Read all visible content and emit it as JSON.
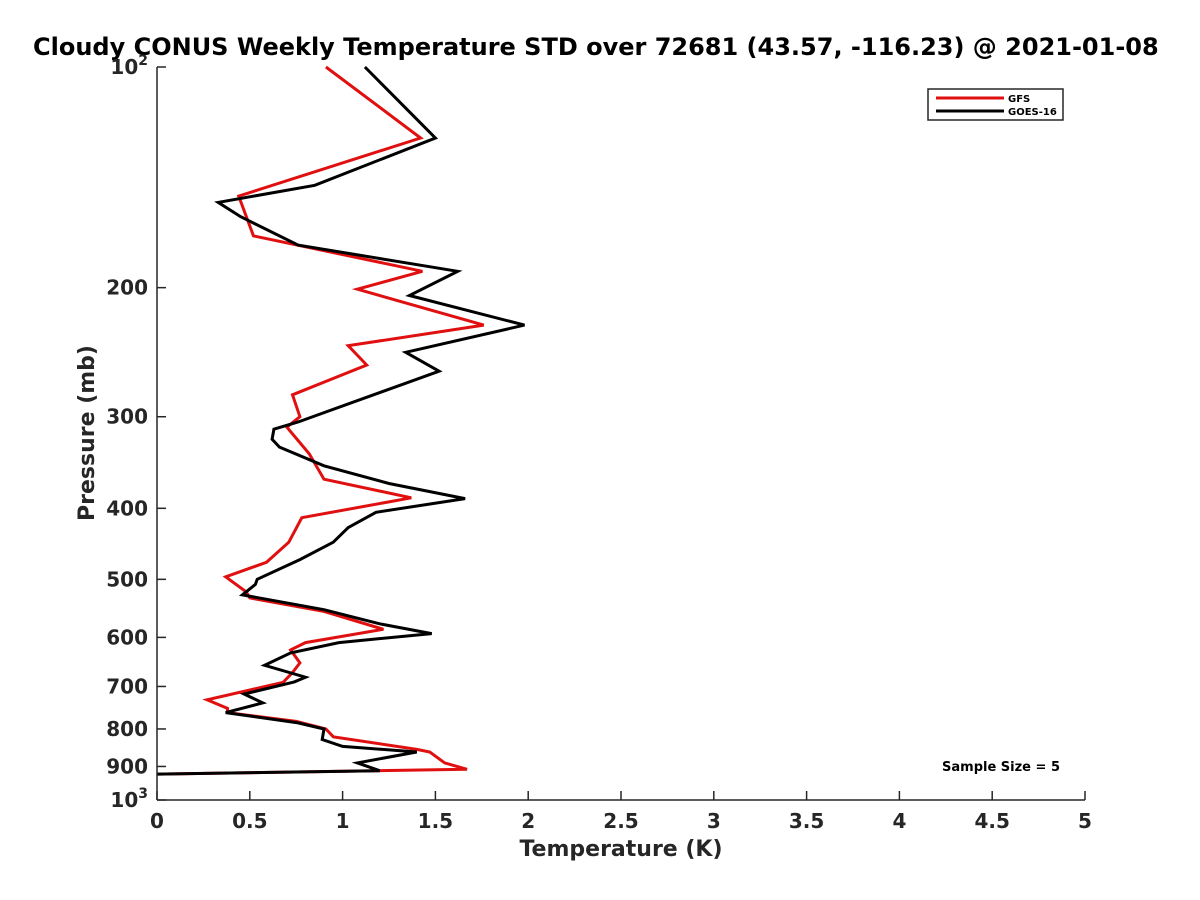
{
  "chart_data": {
    "type": "line",
    "title": "Cloudy CONUS Weekly Temperature STD over 72681 (43.57, -116.23) @ 2021-01-08",
    "xlabel": "Temperature (K)",
    "ylabel": "Pressure (mb)",
    "xlim": [
      0,
      5
    ],
    "ylim": [
      100,
      1000
    ],
    "y_scale": "log",
    "y_reversed": true,
    "x_ticks": [
      0,
      0.5,
      1,
      1.5,
      2,
      2.5,
      3,
      3.5,
      4,
      4.5,
      5
    ],
    "x_tick_labels": [
      "0",
      "0.5",
      "1",
      "1.5",
      "2",
      "2.5",
      "3",
      "3.5",
      "4",
      "4.5",
      "5"
    ],
    "y_ticks": [
      100,
      200,
      300,
      400,
      500,
      600,
      700,
      800,
      900,
      1000
    ],
    "y_tick_labels": [
      {
        "base": "10",
        "exp": "2"
      },
      {
        "base": "200",
        "exp": ""
      },
      {
        "base": "300",
        "exp": ""
      },
      {
        "base": "400",
        "exp": ""
      },
      {
        "base": "500",
        "exp": ""
      },
      {
        "base": "600",
        "exp": ""
      },
      {
        "base": "700",
        "exp": ""
      },
      {
        "base": "800",
        "exp": ""
      },
      {
        "base": "900",
        "exp": ""
      },
      {
        "base": "10",
        "exp": "3"
      }
    ],
    "grid": false,
    "legend_position": "top-right",
    "series": [
      {
        "name": "GFS",
        "color": "#e01010",
        "points": [
          [
            0.91,
            100
          ],
          [
            1.42,
            125
          ],
          [
            0.44,
            150
          ],
          [
            0.52,
            170
          ],
          [
            1.43,
            190
          ],
          [
            1.08,
            201
          ],
          [
            1.76,
            225
          ],
          [
            1.03,
            240
          ],
          [
            1.13,
            255
          ],
          [
            0.73,
            280
          ],
          [
            0.77,
            300
          ],
          [
            0.7,
            310
          ],
          [
            0.82,
            337
          ],
          [
            0.9,
            365
          ],
          [
            1.37,
            387
          ],
          [
            0.78,
            412
          ],
          [
            0.71,
            445
          ],
          [
            0.59,
            474
          ],
          [
            0.37,
            496
          ],
          [
            0.48,
            520
          ],
          [
            0.5,
            530
          ],
          [
            0.9,
            553
          ],
          [
            1.22,
            585
          ],
          [
            0.8,
            610
          ],
          [
            0.72,
            624
          ],
          [
            0.77,
            650
          ],
          [
            0.73,
            670
          ],
          [
            0.68,
            691
          ],
          [
            0.27,
            730
          ],
          [
            0.38,
            750
          ],
          [
            0.38,
            760
          ],
          [
            0.75,
            781
          ],
          [
            0.91,
            800
          ],
          [
            0.95,
            820
          ],
          [
            1.4,
            853
          ],
          [
            1.47,
            860
          ],
          [
            1.55,
            890
          ],
          [
            1.67,
            908
          ],
          [
            0.0,
            922
          ]
        ]
      },
      {
        "name": "GOES-16",
        "color": "#000000",
        "points": [
          [
            1.12,
            100
          ],
          [
            1.5,
            125
          ],
          [
            0.85,
            145
          ],
          [
            0.33,
            153
          ],
          [
            0.45,
            160
          ],
          [
            0.76,
            175
          ],
          [
            1.62,
            190
          ],
          [
            1.36,
            205
          ],
          [
            1.98,
            225
          ],
          [
            1.34,
            245
          ],
          [
            1.52,
            260
          ],
          [
            0.76,
            305
          ],
          [
            0.63,
            312
          ],
          [
            0.62,
            322
          ],
          [
            0.66,
            330
          ],
          [
            0.9,
            350
          ],
          [
            1.25,
            370
          ],
          [
            1.66,
            388
          ],
          [
            1.18,
            405
          ],
          [
            1.03,
            425
          ],
          [
            0.95,
            445
          ],
          [
            0.77,
            470
          ],
          [
            0.54,
            500
          ],
          [
            0.53,
            508
          ],
          [
            0.46,
            525
          ],
          [
            0.9,
            550
          ],
          [
            1.2,
            575
          ],
          [
            1.48,
            593
          ],
          [
            0.98,
            610
          ],
          [
            0.72,
            630
          ],
          [
            0.58,
            655
          ],
          [
            0.8,
            680
          ],
          [
            0.74,
            690
          ],
          [
            0.47,
            717
          ],
          [
            0.57,
            737
          ],
          [
            0.37,
            760
          ],
          [
            0.76,
            785
          ],
          [
            0.9,
            800
          ],
          [
            0.89,
            827
          ],
          [
            1.0,
            845
          ],
          [
            1.4,
            860
          ],
          [
            1.08,
            890
          ],
          [
            1.2,
            912
          ],
          [
            0.0,
            922
          ]
        ]
      }
    ],
    "annotations": [
      {
        "text": "Sample Size = 5",
        "position": "bottom-right"
      }
    ]
  }
}
